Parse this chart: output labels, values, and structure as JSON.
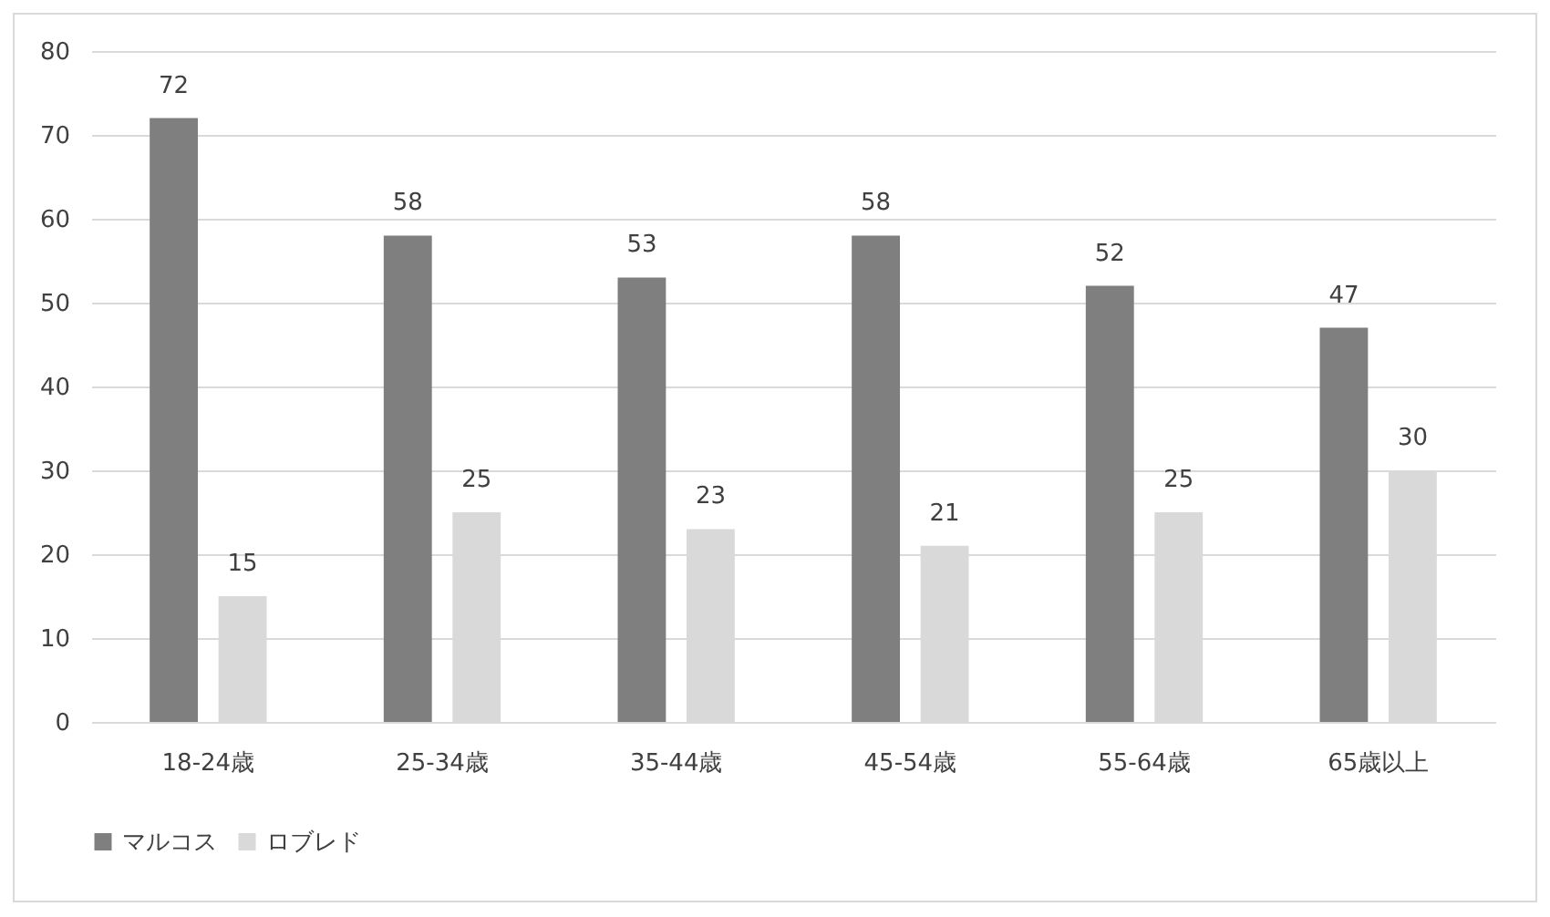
{
  "chart_data": {
    "type": "bar",
    "categories": [
      "18-24歳",
      "25-34歳",
      "35-44歳",
      "45-54歳",
      "55-64歳",
      "65歳以上"
    ],
    "series": [
      {
        "name": "マルコス",
        "color": "#7f7f7f",
        "values": [
          72,
          58,
          53,
          58,
          52,
          47
        ]
      },
      {
        "name": "ロブレド",
        "color": "#d9d9d9",
        "values": [
          15,
          25,
          23,
          21,
          25,
          30
        ]
      }
    ],
    "ylim": [
      0,
      80
    ],
    "yticks": [
      0,
      10,
      20,
      30,
      40,
      50,
      60,
      70,
      80
    ],
    "grid": "y",
    "legend": "bottom",
    "data_labels": true
  }
}
